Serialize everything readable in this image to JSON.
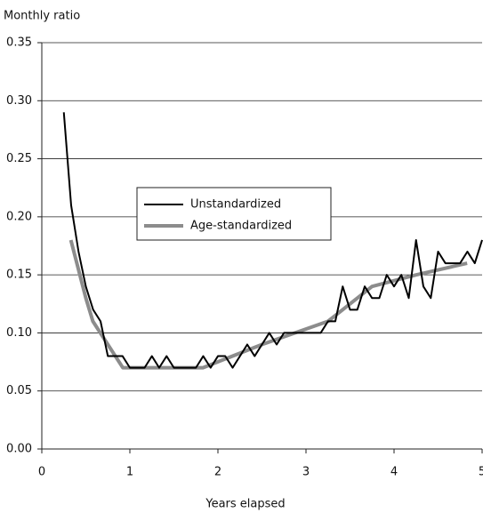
{
  "chart_data": {
    "type": "line",
    "title": "Monthly ratio",
    "x_label": "Years elapsed",
    "xlim": [
      0,
      5
    ],
    "xticks": [
      0,
      1,
      2,
      3,
      4,
      5
    ],
    "ylim": [
      0,
      0.35
    ],
    "yticks": [
      {
        "value": 0,
        "label": "0.00"
      },
      {
        "value": 0.05,
        "label": "0.05"
      },
      {
        "value": 0.1,
        "label": "0.10"
      },
      {
        "value": 0.15,
        "label": "0.15"
      },
      {
        "value": 0.2,
        "label": "0.20"
      },
      {
        "value": 0.25,
        "label": "0.25"
      },
      {
        "value": 0.3,
        "label": "0.30"
      },
      {
        "value": 0.35,
        "label": "0.35"
      }
    ],
    "grid": true,
    "legend": "upper left",
    "series": [
      {
        "name": "Unstandardized",
        "color": "#000000",
        "x": [
          0.25,
          0.333,
          0.417,
          0.5,
          0.583,
          0.667,
          0.75,
          0.833,
          0.917,
          1.0,
          1.083,
          1.167,
          1.25,
          1.333,
          1.417,
          1.5,
          1.583,
          1.667,
          1.75,
          1.833,
          1.917,
          2.0,
          2.083,
          2.167,
          2.25,
          2.333,
          2.417,
          2.5,
          2.583,
          2.667,
          2.75,
          2.833,
          2.917,
          3.0,
          3.083,
          3.167,
          3.25,
          3.333,
          3.417,
          3.5,
          3.583,
          3.667,
          3.75,
          3.833,
          3.917,
          4.0,
          4.083,
          4.167,
          4.25,
          4.333,
          4.417,
          4.5,
          4.583,
          4.667,
          4.75,
          4.833,
          4.917,
          5.0
        ],
        "values": [
          0.29,
          0.21,
          0.17,
          0.14,
          0.12,
          0.11,
          0.08,
          0.08,
          0.08,
          0.07,
          0.07,
          0.07,
          0.08,
          0.07,
          0.08,
          0.07,
          0.07,
          0.07,
          0.07,
          0.08,
          0.07,
          0.08,
          0.08,
          0.07,
          0.08,
          0.09,
          0.08,
          0.09,
          0.1,
          0.09,
          0.1,
          0.1,
          0.1,
          0.1,
          0.1,
          0.1,
          0.11,
          0.11,
          0.14,
          0.12,
          0.12,
          0.14,
          0.13,
          0.13,
          0.15,
          0.14,
          0.15,
          0.13,
          0.18,
          0.14,
          0.13,
          0.17,
          0.16,
          0.16,
          0.16,
          0.17,
          0.16,
          0.18
        ]
      },
      {
        "name": "Age-standardized",
        "color": "#8c8c8c",
        "x": [
          0.33,
          0.5,
          0.58,
          0.75,
          0.92,
          1.5,
          1.83,
          2.5,
          3.25,
          3.75,
          4.25,
          4.83
        ],
        "values": [
          0.18,
          0.13,
          0.11,
          0.09,
          0.07,
          0.07,
          0.07,
          0.09,
          0.11,
          0.14,
          0.15,
          0.16
        ]
      }
    ]
  }
}
